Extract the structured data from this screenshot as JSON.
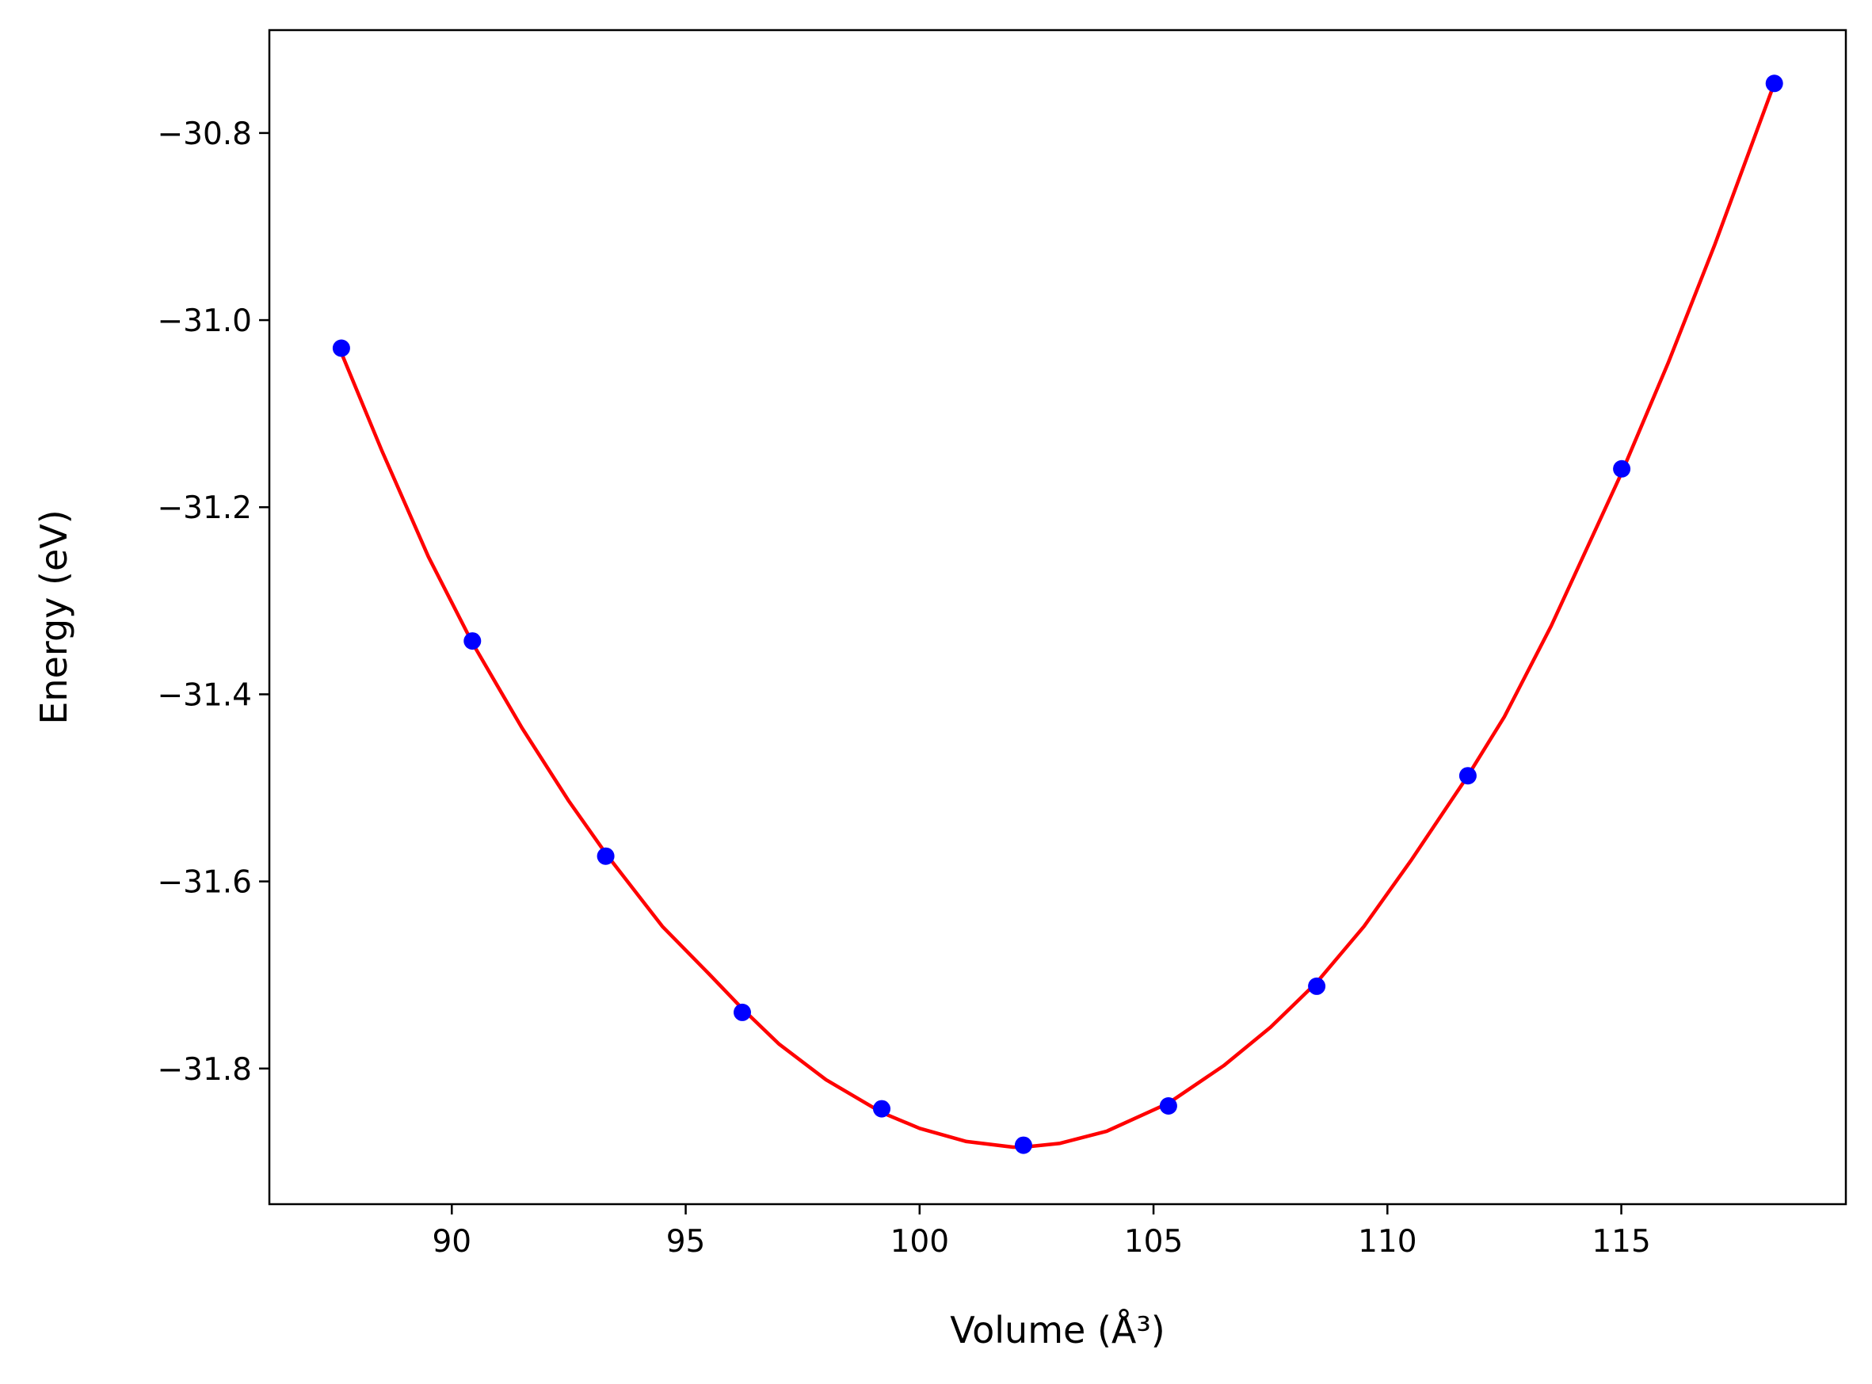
{
  "chart_data": {
    "type": "scatter",
    "xlabel": "Volume (Å³)",
    "ylabel": "Energy (eV)",
    "xlim": [
      86.1,
      119.8
    ],
    "ylim": [
      -31.945,
      -30.69
    ],
    "grid": false,
    "x_ticks": [
      {
        "value": 90,
        "label": "90"
      },
      {
        "value": 95,
        "label": "95"
      },
      {
        "value": 100,
        "label": "100"
      },
      {
        "value": 105,
        "label": "105"
      },
      {
        "value": 110,
        "label": "110"
      },
      {
        "value": 115,
        "label": "115"
      }
    ],
    "y_ticks": [
      {
        "value": -30.8,
        "label": "−30.8"
      },
      {
        "value": -31.0,
        "label": "−31.0"
      },
      {
        "value": -31.2,
        "label": "−31.2"
      },
      {
        "value": -31.4,
        "label": "−31.4"
      },
      {
        "value": -31.6,
        "label": "−31.6"
      },
      {
        "value": -31.8,
        "label": "−31.8"
      }
    ],
    "series": [
      {
        "kind": "points",
        "color": "#0000ff",
        "x": [
          87.64,
          90.44,
          93.29,
          96.21,
          99.19,
          102.22,
          105.32,
          108.49,
          111.72,
          115.01,
          118.27
        ],
        "y": [
          -31.03,
          -31.343,
          -31.573,
          -31.74,
          -31.843,
          -31.882,
          -31.84,
          -31.712,
          -31.487,
          -31.159,
          -30.747
        ]
      },
      {
        "kind": "fit-line",
        "color": "#ff0000",
        "x": [
          87.64,
          88.5,
          89.5,
          90.44,
          91.5,
          92.5,
          93.29,
          94.5,
          95.5,
          96.21,
          97.0,
          98.0,
          99.19,
          100.0,
          101.0,
          102.0,
          102.22,
          103.0,
          104.0,
          105.32,
          106.5,
          107.5,
          108.49,
          109.5,
          110.5,
          111.72,
          112.5,
          113.5,
          115.01,
          116.0,
          117.0,
          118.27
        ],
        "y": [
          -31.035,
          -31.139,
          -31.253,
          -31.345,
          -31.436,
          -31.514,
          -31.57,
          -31.648,
          -31.699,
          -31.736,
          -31.774,
          -31.812,
          -31.847,
          -31.864,
          -31.878,
          -31.884,
          -31.884,
          -31.88,
          -31.867,
          -31.837,
          -31.797,
          -31.756,
          -31.708,
          -31.648,
          -31.578,
          -31.487,
          -31.424,
          -31.327,
          -31.163,
          -31.046,
          -30.919,
          -30.747
        ]
      }
    ]
  }
}
